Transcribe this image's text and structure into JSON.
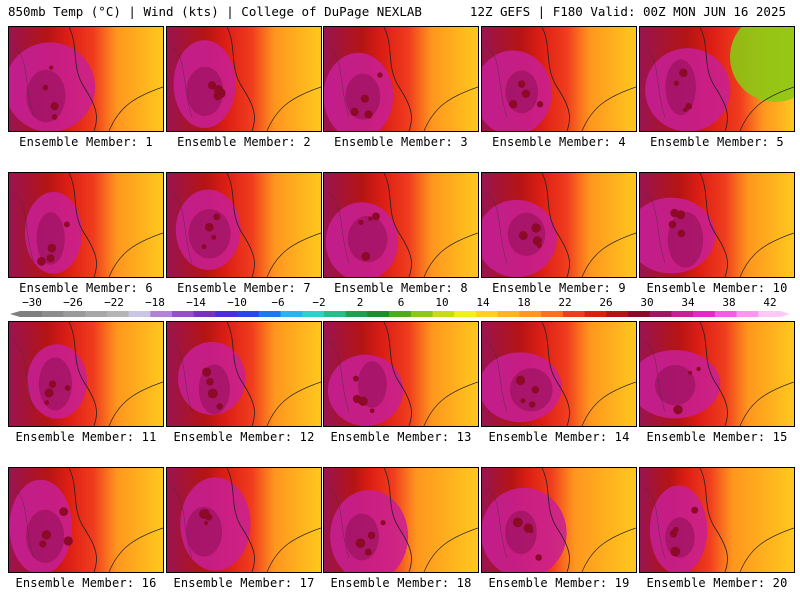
{
  "header": {
    "left_title": "850mb Temp (°C) | Wind (kts) | College of DuPage NEXLAB",
    "right_title": "12Z GEFS | F180 Valid: 00Z MON JUN 16 2025"
  },
  "members": [
    {
      "label": "Ensemble Member: 1"
    },
    {
      "label": "Ensemble Member: 2"
    },
    {
      "label": "Ensemble Member: 3"
    },
    {
      "label": "Ensemble Member: 4"
    },
    {
      "label": "Ensemble Member: 5"
    },
    {
      "label": "Ensemble Member: 6"
    },
    {
      "label": "Ensemble Member: 7"
    },
    {
      "label": "Ensemble Member: 8"
    },
    {
      "label": "Ensemble Member: 9"
    },
    {
      "label": "Ensemble Member: 10"
    },
    {
      "label": "Ensemble Member: 11"
    },
    {
      "label": "Ensemble Member: 12"
    },
    {
      "label": "Ensemble Member: 13"
    },
    {
      "label": "Ensemble Member: 14"
    },
    {
      "label": "Ensemble Member: 15"
    },
    {
      "label": "Ensemble Member: 16"
    },
    {
      "label": "Ensemble Member: 17"
    },
    {
      "label": "Ensemble Member: 18"
    },
    {
      "label": "Ensemble Member: 19"
    },
    {
      "label": "Ensemble Member: 20"
    }
  ],
  "colorbar": {
    "tick_labels": [
      "−30",
      "−26",
      "−22",
      "−18",
      "−14",
      "−10",
      "−6",
      "−2",
      "2",
      "6",
      "10",
      "14",
      "18",
      "22",
      "26",
      "30",
      "34",
      "38",
      "42"
    ],
    "colors": [
      "#7f7f7f",
      "#8c8c8c",
      "#9a9a9a",
      "#a7a7a7",
      "#b4b4b4",
      "#c8c8e6",
      "#b482d2",
      "#9650c8",
      "#7832be",
      "#4b2ce0",
      "#2846f0",
      "#1e78f0",
      "#28b4f0",
      "#2ad2c8",
      "#28be8c",
      "#1ea050",
      "#1e8c28",
      "#50aa1e",
      "#8cc814",
      "#c8dc14",
      "#f0f01e",
      "#ffd21e",
      "#ffb41e",
      "#ff961e",
      "#ff6e1e",
      "#f03c1e",
      "#dc1e14",
      "#b41414",
      "#8c0a28",
      "#a01464",
      "#c81e96",
      "#e628c8",
      "#f55ae6",
      "#fa96f0",
      "#ffc8f8"
    ]
  }
}
